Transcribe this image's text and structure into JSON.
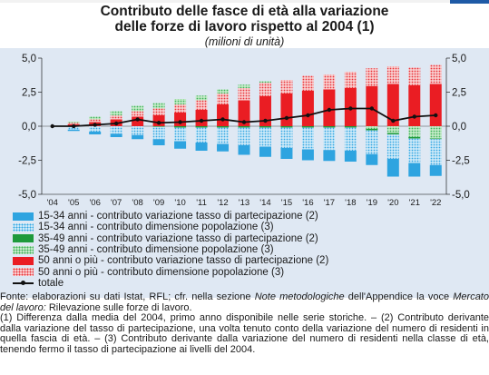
{
  "header": {
    "title_line1": "Contributo delle fasce di età alla variazione",
    "title_line2": "delle forze di lavoro rispetto al 2004 (1)",
    "subtitle": "(milioni di unità)"
  },
  "colors": {
    "panel_bg": "#dfe8f3",
    "s1": "#2ea4e0",
    "s2": "#a9d8f2",
    "s3": "#1e9a3c",
    "s4": "#93d59c",
    "s5": "#ea1d23",
    "s6": "#f4a3a5",
    "total": "#111111"
  },
  "chart_data": {
    "type": "bar",
    "stacked": true,
    "categories": [
      "'04",
      "'05",
      "'06",
      "'07",
      "'08",
      "'09",
      "'10",
      "'11",
      "'12",
      "'13",
      "'14",
      "'15",
      "'16",
      "'17",
      "'18",
      "'19",
      "'20",
      "'21",
      "'22"
    ],
    "ylim": [
      -5.0,
      5.0
    ],
    "yticks": [
      "-5,0",
      "-2,5",
      "0,0",
      "2,5",
      "5,0"
    ],
    "ytick_values": [
      -5.0,
      -2.5,
      0.0,
      2.5,
      5.0
    ],
    "grid": false,
    "legend_position": "bottom",
    "series": [
      {
        "name": "15-34 anni - contributo variazione tasso di partecipazione (2)",
        "kind": "bar",
        "color": "#2ea4e0",
        "values": [
          0,
          -0.1,
          -0.2,
          -0.25,
          -0.3,
          -0.45,
          -0.55,
          -0.6,
          -0.55,
          -0.7,
          -0.75,
          -0.8,
          -0.8,
          -0.8,
          -0.8,
          -0.8,
          -1.3,
          -1.0,
          -0.8
        ]
      },
      {
        "name": "15-34 anni - contributo dimensione popolazione (3)",
        "kind": "bar",
        "color": "#a9d8f2",
        "values": [
          0,
          -0.25,
          -0.4,
          -0.55,
          -0.65,
          -0.9,
          -1.0,
          -1.1,
          -1.2,
          -1.3,
          -1.4,
          -1.5,
          -1.6,
          -1.65,
          -1.7,
          -1.75,
          -1.8,
          -1.8,
          -1.9
        ]
      },
      {
        "name": "35-49 anni - contributo variazione tasso di partecipazione (2)",
        "kind": "bar",
        "color": "#1e9a3c",
        "values": [
          0,
          0.0,
          0.0,
          0.0,
          0.0,
          -0.05,
          -0.1,
          -0.1,
          -0.1,
          -0.1,
          -0.1,
          -0.1,
          -0.1,
          -0.1,
          -0.1,
          -0.1,
          -0.1,
          -0.1,
          -0.05
        ]
      },
      {
        "name": "35-49 anni - contributo dimensione popolazione (3)",
        "kind": "bar",
        "color": "#93d59c",
        "values": [
          0,
          0.1,
          0.2,
          0.3,
          0.4,
          0.4,
          0.4,
          0.35,
          0.3,
          0.25,
          0.1,
          0.0,
          0.0,
          0.0,
          0.0,
          -0.2,
          -0.5,
          -0.8,
          -0.9
        ]
      },
      {
        "name": "50 anni o più - contributo variazione tasso di partecipazione (2)",
        "kind": "bar",
        "color": "#ea1d23",
        "values": [
          0,
          0.15,
          0.3,
          0.5,
          0.7,
          0.8,
          1.0,
          1.2,
          1.6,
          1.9,
          2.2,
          2.4,
          2.6,
          2.7,
          2.8,
          2.95,
          3.1,
          3.0,
          3.1
        ]
      },
      {
        "name": "50 anni o più - contributo dimensione popolazione (3)",
        "kind": "bar",
        "color": "#f4a3a5",
        "values": [
          0,
          0.1,
          0.2,
          0.3,
          0.4,
          0.5,
          0.6,
          0.7,
          0.8,
          0.9,
          1.0,
          1.0,
          1.1,
          1.1,
          1.2,
          1.3,
          1.3,
          1.3,
          1.4
        ]
      },
      {
        "name": "totale",
        "kind": "line",
        "color": "#111111",
        "values": [
          0.0,
          0.0,
          0.1,
          0.2,
          0.5,
          0.25,
          0.3,
          0.4,
          0.5,
          0.3,
          0.4,
          0.6,
          0.8,
          1.2,
          1.3,
          1.3,
          0.4,
          0.7,
          0.8
        ]
      }
    ]
  },
  "footnote": {
    "l1_a": "Fonte: elaborazioni su dati Istat, RFL; cfr. nella sezione ",
    "l1_b": "Note metodologiche",
    "l2_a": "dell'Appendice la voce ",
    "l2_b": "Mercato del lavoro:",
    "l2_c": " Rilevazione sulle forze di lavoro.",
    "rest": "(1) Differenza dalla media del 2004, primo anno disponibile nelle serie storiche. – (2) Contributo derivante dalla variazione del tasso di partecipazione, una volta tenuto conto della variazione del numero di residenti in quella fascia di età. – (3) Contributo derivante dalla variazione del numero di residenti nella classe di età, tenendo fermo il tasso di partecipazione ai livelli del 2004."
  }
}
